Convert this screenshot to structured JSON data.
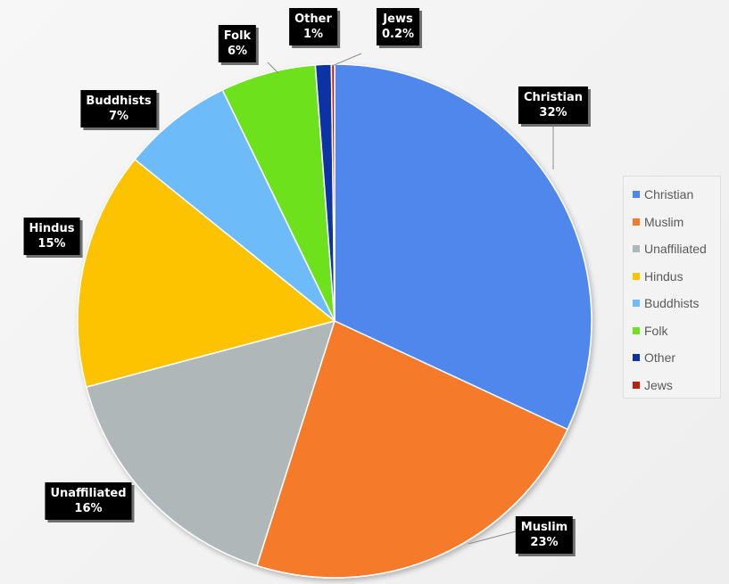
{
  "chart_data": {
    "type": "pie",
    "title": "",
    "legend_position": "right",
    "slices": [
      {
        "label": "Christian",
        "value": 32,
        "display": "32%",
        "color": "#5087ed"
      },
      {
        "label": "Muslim",
        "value": 23,
        "display": "23%",
        "color": "#f57a2b"
      },
      {
        "label": "Unaffiliated",
        "value": 16,
        "display": "16%",
        "color": "#b0b7b8"
      },
      {
        "label": "Hindus",
        "value": 15,
        "display": "15%",
        "color": "#fdc203"
      },
      {
        "label": "Buddhists",
        "value": 7,
        "display": "7%",
        "color": "#6dbcf9"
      },
      {
        "label": "Folk",
        "value": 6,
        "display": "6%",
        "color": "#6de11c"
      },
      {
        "label": "Other",
        "value": 1,
        "display": "1%",
        "color": "#0b32a3"
      },
      {
        "label": "Jews",
        "value": 0.2,
        "display": "0.2%",
        "color": "#b3240a"
      }
    ]
  }
}
